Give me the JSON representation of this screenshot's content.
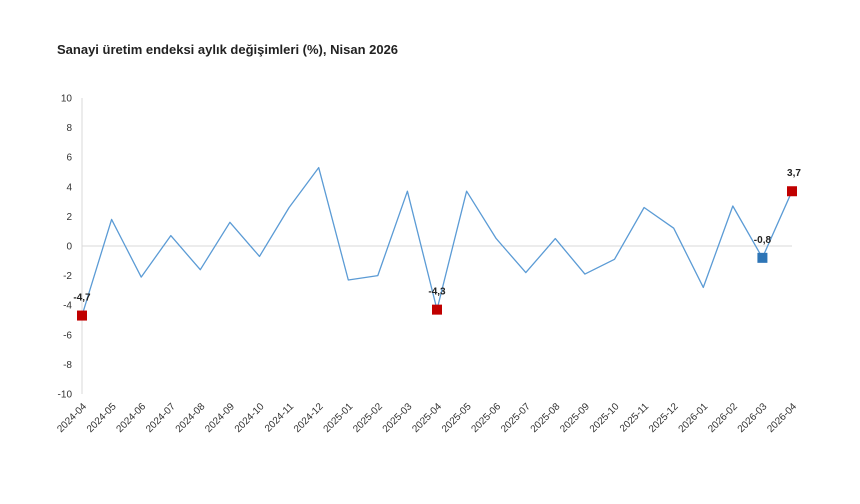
{
  "chart_data": {
    "type": "line",
    "title": "Sanayi üretim endeksi aylık değişimleri (%), Nisan 2026",
    "xlabel": "",
    "ylabel": "",
    "ylim": [
      -10,
      10
    ],
    "yticks": [
      10,
      8,
      6,
      4,
      2,
      0,
      -2,
      -4,
      -6,
      -8,
      -10
    ],
    "yticks_labels": [
      "10",
      "8",
      "6",
      "4",
      "2",
      "0",
      "-2",
      "-4",
      "-6",
      "-8",
      "-10"
    ],
    "categories": [
      "2024-04",
      "2024-05",
      "2024-06",
      "2024-07",
      "2024-08",
      "2024-09",
      "2024-10",
      "2024-11",
      "2024-12",
      "2025-01",
      "2025-02",
      "2025-03",
      "2025-04",
      "2025-05",
      "2025-06",
      "2025-07",
      "2025-08",
      "2025-09",
      "2025-10",
      "2025-11",
      "2025-12",
      "2026-01",
      "2026-02",
      "2026-03",
      "2026-04"
    ],
    "values": [
      -4.7,
      1.8,
      -2.1,
      0.7,
      -1.6,
      1.6,
      -0.7,
      2.6,
      5.3,
      -2.3,
      -2.0,
      3.7,
      -4.3,
      3.7,
      0.5,
      -1.8,
      0.5,
      -1.9,
      -0.9,
      2.6,
      1.2,
      -2.8,
      2.7,
      -0.8,
      3.7
    ],
    "grid": "zero-line only",
    "colors": {
      "line": "#5b9bd5",
      "highlight_red": "#c00000",
      "highlight_blue": "#2e75b6",
      "zero_line": "#d9d9d9",
      "axis": "#d9d9d9"
    },
    "highlights": [
      {
        "category": "2024-04",
        "value": -4.7,
        "label": "-4,7",
        "color": "#c00000"
      },
      {
        "category": "2025-04",
        "value": -4.3,
        "label": "-4,3",
        "color": "#c00000"
      },
      {
        "category": "2026-03",
        "value": -0.8,
        "label": "-0,8",
        "color": "#2e75b6"
      },
      {
        "category": "2026-04",
        "value": 3.7,
        "label": "3,7",
        "color": "#c00000"
      }
    ]
  }
}
